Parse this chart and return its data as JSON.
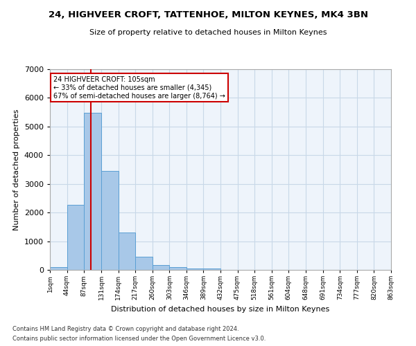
{
  "title": "24, HIGHVEER CROFT, TATTENHOE, MILTON KEYNES, MK4 3BN",
  "subtitle": "Size of property relative to detached houses in Milton Keynes",
  "xlabel": "Distribution of detached houses by size in Milton Keynes",
  "ylabel": "Number of detached properties",
  "footnote1": "Contains HM Land Registry data © Crown copyright and database right 2024.",
  "footnote2": "Contains public sector information licensed under the Open Government Licence v3.0.",
  "bar_color": "#a8c8e8",
  "bar_edge_color": "#5a9fd4",
  "grid_color": "#c8d8e8",
  "bg_color": "#eef4fb",
  "vline_color": "#cc0000",
  "annotation_box_color": "#cc0000",
  "annotation_text": "24 HIGHVEER CROFT: 105sqm\n← 33% of detached houses are smaller (4,345)\n67% of semi-detached houses are larger (8,764) →",
  "vline_x": 105,
  "bin_edges": [
    1,
    44,
    87,
    131,
    174,
    217,
    260,
    303,
    346,
    389,
    432,
    475,
    518,
    561,
    604,
    648,
    691,
    734,
    777,
    820,
    863
  ],
  "bar_heights": [
    90,
    2280,
    5470,
    3450,
    1310,
    470,
    160,
    90,
    60,
    40,
    0,
    0,
    0,
    0,
    0,
    0,
    0,
    0,
    0,
    0
  ],
  "ylim": [
    0,
    7000
  ],
  "yticks": [
    0,
    1000,
    2000,
    3000,
    4000,
    5000,
    6000,
    7000
  ],
  "xtick_labels": [
    "1sqm",
    "44sqm",
    "87sqm",
    "131sqm",
    "174sqm",
    "217sqm",
    "260sqm",
    "303sqm",
    "346sqm",
    "389sqm",
    "432sqm",
    "475sqm",
    "518sqm",
    "561sqm",
    "604sqm",
    "648sqm",
    "691sqm",
    "734sqm",
    "777sqm",
    "820sqm",
    "863sqm"
  ]
}
